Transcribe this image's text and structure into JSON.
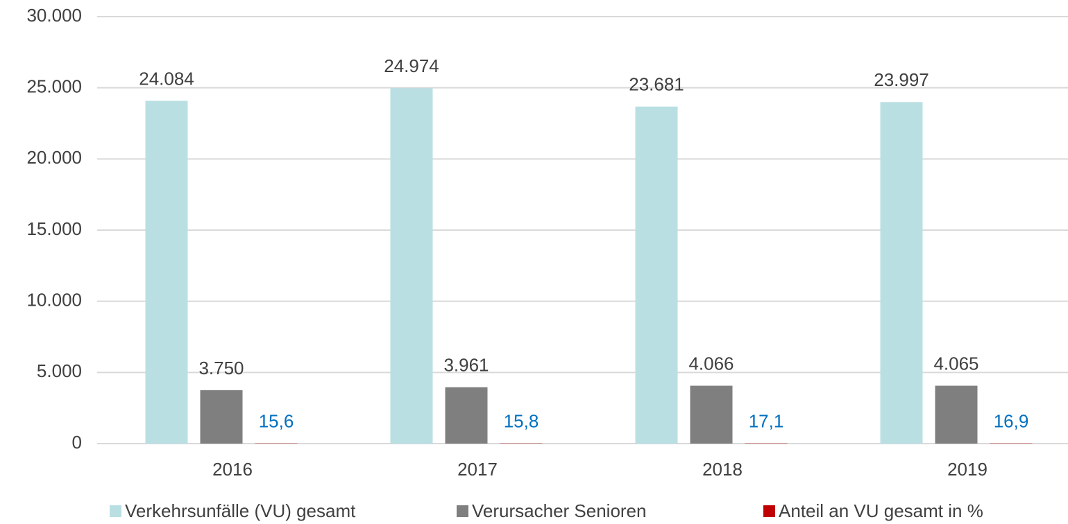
{
  "chart_data": {
    "type": "bar",
    "categories": [
      "2016",
      "2017",
      "2018",
      "2019"
    ],
    "series": [
      {
        "name": "Verkehrsunfälle (VU) gesamt",
        "color": "#b9dfe2",
        "values": [
          24084,
          24974,
          23681,
          23997
        ],
        "value_labels": [
          "24.084",
          "24.974",
          "23.681",
          "23.997"
        ],
        "label_color": "#404040"
      },
      {
        "name": "Verursacher Senioren",
        "color": "#7f7f7f",
        "values": [
          3750,
          3961,
          4066,
          4065
        ],
        "value_labels": [
          "3.750",
          "3.961",
          "4.066",
          "4.065"
        ],
        "label_color": "#404040"
      },
      {
        "name": "Anteil an VU gesamt in %",
        "color": "#c00000",
        "values": [
          15.6,
          15.8,
          17.1,
          16.9
        ],
        "value_labels": [
          "15,6",
          "15,8",
          "17,1",
          "16,9"
        ],
        "label_color": "#0070c0"
      }
    ],
    "ylim": [
      0,
      30000
    ],
    "yticks": [
      0,
      {
        "value": 5000,
        "label": "5.000"
      },
      {
        "value": 10000,
        "label": "10.000"
      },
      {
        "value": 15000,
        "label": "15.000"
      },
      {
        "value": 20000,
        "label": "20.000"
      },
      {
        "value": 25000,
        "label": "25.000"
      },
      {
        "value": 30000,
        "label": "30.000"
      }
    ],
    "grid": true,
    "legend": "bottom"
  }
}
